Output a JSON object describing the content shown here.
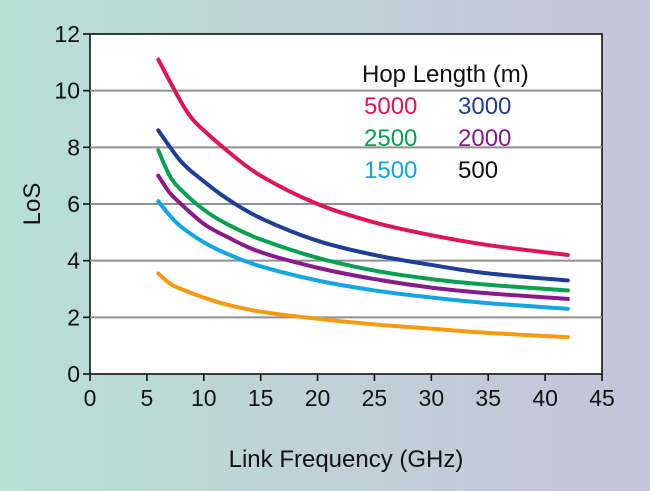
{
  "chart_data": {
    "type": "line",
    "title": "",
    "xlabel": "Link Frequency (GHz)",
    "ylabel": "LoS",
    "xlim": [
      0,
      45
    ],
    "ylim": [
      0,
      12
    ],
    "xticks": [
      0,
      5,
      10,
      15,
      20,
      25,
      30,
      35,
      40,
      45
    ],
    "yticks": [
      0,
      2,
      4,
      6,
      8,
      10,
      12
    ],
    "gridlines_y": [
      2,
      4,
      6,
      8,
      10
    ],
    "grid": "horizontal",
    "legend": {
      "title": "Hop Length (m)",
      "placement": "top-right",
      "layout": "two-columns"
    },
    "background": {
      "left": "#b7e0d3",
      "right": "#c6c3dc"
    },
    "plot_background": "#ffffff",
    "series": [
      {
        "name": "5000",
        "color": "#e0145a",
        "x": [
          6,
          8,
          9,
          10,
          12,
          15,
          20,
          25,
          30,
          35,
          42
        ],
        "y": [
          11.1,
          9.6,
          9.0,
          8.6,
          7.9,
          7.0,
          6.0,
          5.35,
          4.9,
          4.55,
          4.2
        ]
      },
      {
        "name": "3000",
        "color": "#1f3e97",
        "x": [
          6,
          8,
          10,
          12,
          15,
          20,
          25,
          30,
          35,
          42
        ],
        "y": [
          8.6,
          7.5,
          6.8,
          6.2,
          5.5,
          4.7,
          4.2,
          3.85,
          3.55,
          3.3
        ]
      },
      {
        "name": "2500",
        "color": "#08a14f",
        "x": [
          6,
          7,
          8,
          10,
          12,
          15,
          20,
          25,
          30,
          35,
          42
        ],
        "y": [
          7.9,
          7.0,
          6.5,
          5.8,
          5.3,
          4.75,
          4.1,
          3.65,
          3.35,
          3.15,
          2.95
        ]
      },
      {
        "name": "2000",
        "color": "#8a1a8c",
        "x": [
          6,
          7,
          8,
          10,
          12,
          15,
          20,
          25,
          30,
          35,
          42
        ],
        "y": [
          7.0,
          6.4,
          6.0,
          5.3,
          4.85,
          4.3,
          3.75,
          3.35,
          3.05,
          2.85,
          2.65
        ]
      },
      {
        "name": "1500",
        "color": "#12a6e3",
        "x": [
          6,
          7,
          8,
          10,
          12,
          15,
          20,
          25,
          30,
          35,
          42
        ],
        "y": [
          6.1,
          5.6,
          5.2,
          4.65,
          4.25,
          3.8,
          3.3,
          2.95,
          2.7,
          2.5,
          2.3
        ]
      },
      {
        "name": "500",
        "color": "#f59b12",
        "x": [
          6,
          7,
          8,
          10,
          12,
          15,
          20,
          25,
          30,
          35,
          42
        ],
        "y": [
          3.55,
          3.2,
          3.0,
          2.7,
          2.45,
          2.2,
          1.95,
          1.75,
          1.6,
          1.45,
          1.3
        ]
      }
    ]
  }
}
